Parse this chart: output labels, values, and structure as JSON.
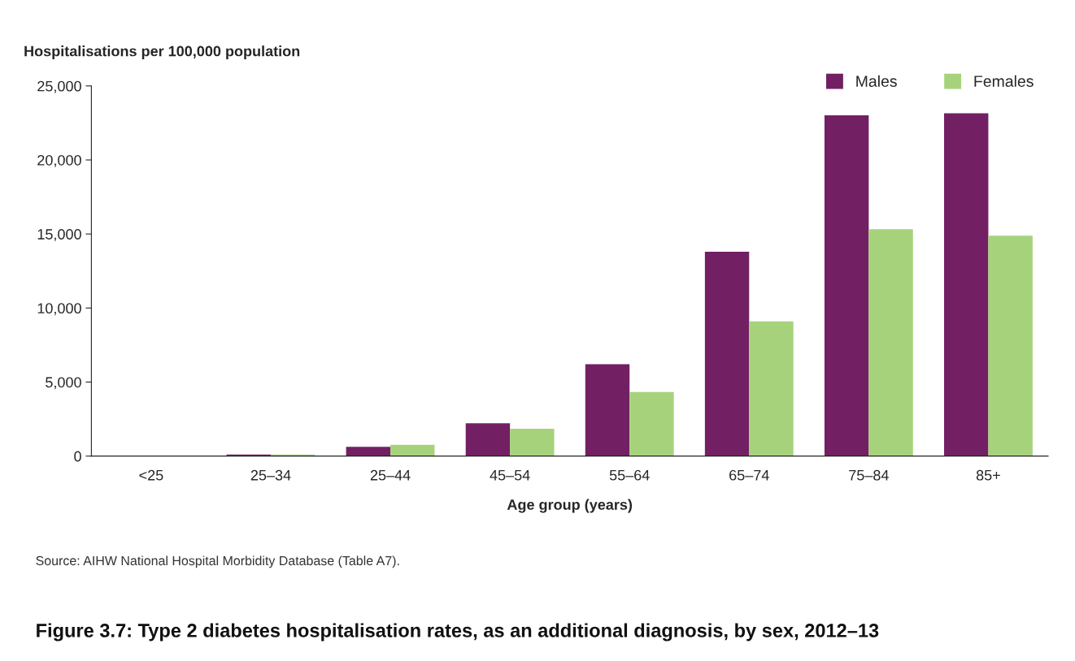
{
  "chart_data": {
    "type": "bar",
    "title": "Figure 3.7: Type 2 diabetes hospitalisation rates, as an additional diagnosis, by sex, 2012–13",
    "ylabel": "Hospitalisations per 100,000 population",
    "xlabel": "Age group (years)",
    "categories": [
      "<25",
      "25–34",
      "25–44",
      "45–54",
      "55–64",
      "65–74",
      "75–84",
      "85+"
    ],
    "series": [
      {
        "name": "Males",
        "color": "#722063",
        "values": [
          null,
          100,
          620,
          2210,
          6210,
          13800,
          23010,
          23150
        ]
      },
      {
        "name": "Females",
        "color": "#a6d27c",
        "values": [
          null,
          100,
          760,
          1850,
          4330,
          9100,
          15330,
          14890
        ]
      }
    ],
    "ylim": [
      0,
      25000
    ],
    "yticks": [
      {
        "value": 0,
        "label": "0"
      },
      {
        "value": 5000,
        "label": "5,000"
      },
      {
        "value": 10000,
        "label": "10,000"
      },
      {
        "value": 15000,
        "label": "15,000"
      },
      {
        "value": 20000,
        "label": "20,000"
      },
      {
        "value": 25000,
        "label": "25,000"
      }
    ],
    "grid": false,
    "legend": "top right",
    "annotations": [
      "Source: AIHW National Hospital Morbidity Database (Table A7)."
    ]
  }
}
